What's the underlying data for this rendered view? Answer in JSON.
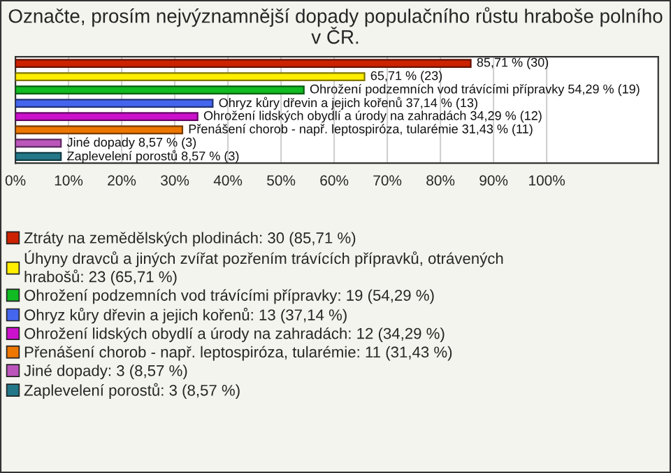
{
  "chart_data": {
    "type": "bar",
    "orientation": "horizontal",
    "title": "Označte, prosím nejvýznamnější dopady populačního růstu hraboše polního v ČR.",
    "categories": [
      null,
      null,
      null,
      null,
      null,
      null,
      null,
      null
    ],
    "series": [
      {
        "name": "Ztráty na zemědělských plodinách: 30 (85,71 %)",
        "color": "#cc2200",
        "values": [
          85.71,
          null,
          null,
          null,
          null,
          null,
          null,
          null
        ],
        "value_labels": [
          "85,71 % (30)",
          null,
          null,
          null,
          null,
          null,
          null,
          null
        ]
      },
      {
        "name": "Úhyny dravců a jiných zvířat pozřením trávících přípravků, otrávených hrabošů: 23 (65,71 %)",
        "color": "#ffee00",
        "values": [
          null,
          65.71,
          null,
          null,
          null,
          null,
          null,
          null
        ],
        "value_labels": [
          null,
          "65,71 % (23)",
          null,
          null,
          null,
          null,
          null,
          null
        ]
      },
      {
        "name": "Ohrožení podzemních vod trávícími přípravky: 19 (54,29 %)",
        "color": "#11bb22",
        "values": [
          null,
          null,
          54.29,
          null,
          null,
          null,
          null,
          null
        ],
        "value_labels": [
          null,
          null,
          "Ohrožení podzemních vod trávícími přípravky 54,29 % (19)",
          null,
          null,
          null,
          null,
          null
        ]
      },
      {
        "name": "Ohryz kůry dřevin a jejich kořenů: 13 (37,14 %)",
        "color": "#4466ee",
        "values": [
          null,
          null,
          null,
          37.14,
          null,
          null,
          null,
          null
        ],
        "value_labels": [
          null,
          null,
          null,
          "Ohryz kůry dřevin a jejich kořenů 37,14 % (13)",
          null,
          null,
          null,
          null
        ]
      },
      {
        "name": "Ohrožení lidských obydlí a úrody na zahradách: 12 (34,29 %)",
        "color": "#cc11cc",
        "values": [
          null,
          null,
          null,
          null,
          34.29,
          null,
          null,
          null
        ],
        "value_labels": [
          null,
          null,
          null,
          null,
          "Ohrožení lidských obydlí a úrody na zahradách 34,29 % (12)",
          null,
          null,
          null
        ]
      },
      {
        "name": "Přenášení chorob - např. leptospiróza, tularémie: 11 (31,43 %)",
        "color": "#ee7700",
        "values": [
          null,
          null,
          null,
          null,
          null,
          31.43,
          null,
          null
        ],
        "value_labels": [
          null,
          null,
          null,
          null,
          null,
          "Přenášení chorob - např. leptospiróza, tularémie 31,43 % (11)",
          null,
          null
        ]
      },
      {
        "name": "Jiné dopady: 3 (8,57 %)",
        "color": "#bb55bb",
        "values": [
          null,
          null,
          null,
          null,
          null,
          null,
          8.57,
          null
        ],
        "value_labels": [
          null,
          null,
          null,
          null,
          null,
          null,
          "Jiné dopady 8,57 % (3)",
          null
        ]
      },
      {
        "name": "Zaplevelení porostů: 3 (8,57 %)",
        "color": "#227788",
        "values": [
          null,
          null,
          null,
          null,
          null,
          null,
          null,
          8.57
        ],
        "value_labels": [
          null,
          null,
          null,
          null,
          null,
          null,
          null,
          "Zaplevelení porostů 8,57 % (3)"
        ]
      }
    ],
    "xlim": [
      0,
      121
    ],
    "xticks": [
      {
        "value": 0,
        "label": "0%"
      },
      {
        "value": 10,
        "label": "10%"
      },
      {
        "value": 20,
        "label": "20%"
      },
      {
        "value": 30,
        "label": "30%"
      },
      {
        "value": 40,
        "label": "40%"
      },
      {
        "value": 50,
        "label": "50%"
      },
      {
        "value": 60,
        "label": "60%"
      },
      {
        "value": 70,
        "label": "70%"
      },
      {
        "value": 80,
        "label": "80%"
      },
      {
        "value": 90,
        "label": "90%"
      },
      {
        "value": 100,
        "label": "100%"
      }
    ],
    "grid": "x",
    "legend": "bottom"
  }
}
